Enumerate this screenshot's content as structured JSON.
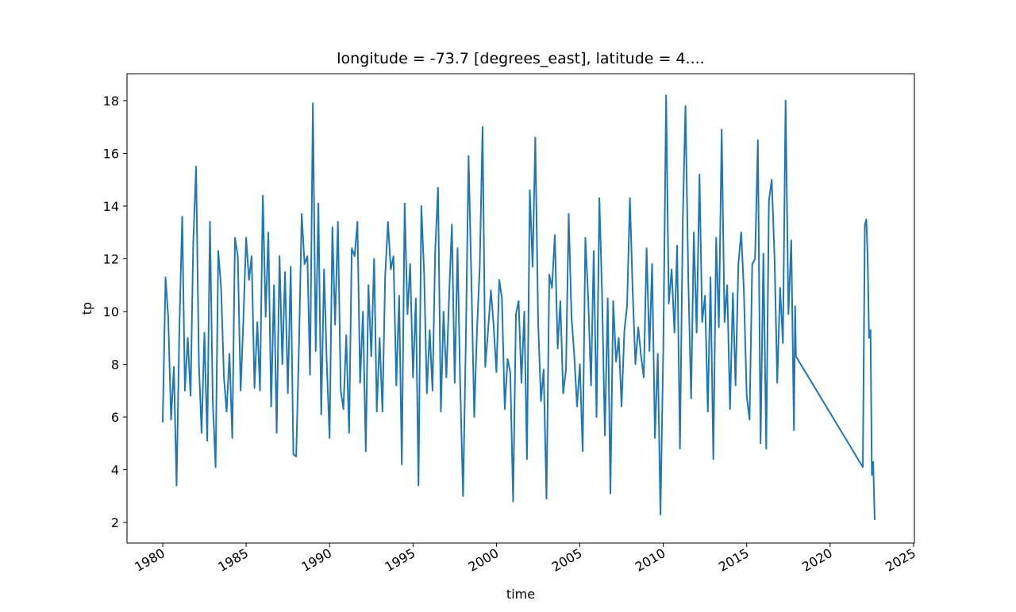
{
  "chart_data": {
    "type": "line",
    "title": "longitude = -73.7 [degrees_east], latitude = 4....",
    "xlabel": "time",
    "ylabel": "tp",
    "xlim": [
      1977.86,
      2025.05
    ],
    "ylim": [
      1.22,
      19.02
    ],
    "xticks": [
      1980,
      1985,
      1990,
      1995,
      2000,
      2005,
      2010,
      2015,
      2020,
      2025
    ],
    "yticks": [
      2,
      4,
      6,
      8,
      10,
      12,
      14,
      16,
      18
    ],
    "series": [
      {
        "color": "#1f77b4",
        "x": [
          1980.0,
          1980.17,
          1980.33,
          1980.5,
          1980.67,
          1980.83,
          1981.0,
          1981.17,
          1981.33,
          1981.5,
          1981.67,
          1981.83,
          1982.0,
          1982.17,
          1982.33,
          1982.5,
          1982.67,
          1982.83,
          1983.0,
          1983.17,
          1983.33,
          1983.5,
          1983.67,
          1983.83,
          1984.0,
          1984.17,
          1984.33,
          1984.5,
          1984.67,
          1984.83,
          1985.0,
          1985.17,
          1985.33,
          1985.5,
          1985.67,
          1985.83,
          1986.0,
          1986.17,
          1986.33,
          1986.5,
          1986.67,
          1986.83,
          1987.0,
          1987.17,
          1987.33,
          1987.5,
          1987.67,
          1987.83,
          1988.0,
          1988.17,
          1988.33,
          1988.5,
          1988.67,
          1988.83,
          1989.0,
          1989.17,
          1989.33,
          1989.5,
          1989.67,
          1989.83,
          1990.0,
          1990.17,
          1990.33,
          1990.5,
          1990.67,
          1990.83,
          1991.0,
          1991.17,
          1991.33,
          1991.5,
          1991.67,
          1991.83,
          1992.0,
          1992.17,
          1992.33,
          1992.5,
          1992.67,
          1992.83,
          1993.0,
          1993.17,
          1993.33,
          1993.5,
          1993.67,
          1993.83,
          1994.0,
          1994.17,
          1994.33,
          1994.5,
          1994.67,
          1994.83,
          1995.0,
          1995.17,
          1995.33,
          1995.5,
          1995.67,
          1995.83,
          1996.0,
          1996.17,
          1996.33,
          1996.5,
          1996.67,
          1996.83,
          1997.0,
          1997.17,
          1997.33,
          1997.5,
          1997.67,
          1997.83,
          1998.0,
          1998.17,
          1998.33,
          1998.5,
          1998.67,
          1998.83,
          1999.0,
          1999.17,
          1999.33,
          1999.5,
          1999.67,
          1999.83,
          2000.0,
          2000.17,
          2000.33,
          2000.5,
          2000.67,
          2000.83,
          2001.0,
          2001.17,
          2001.33,
          2001.5,
          2001.67,
          2001.83,
          2002.0,
          2002.17,
          2002.33,
          2002.5,
          2002.67,
          2002.83,
          2003.0,
          2003.17,
          2003.33,
          2003.5,
          2003.67,
          2003.83,
          2004.0,
          2004.17,
          2004.33,
          2004.5,
          2004.67,
          2004.83,
          2005.0,
          2005.17,
          2005.33,
          2005.5,
          2005.67,
          2005.83,
          2006.0,
          2006.17,
          2006.33,
          2006.5,
          2006.67,
          2006.83,
          2007.0,
          2007.17,
          2007.33,
          2007.5,
          2007.67,
          2007.83,
          2008.0,
          2008.17,
          2008.33,
          2008.5,
          2008.67,
          2008.83,
          2009.0,
          2009.17,
          2009.33,
          2009.5,
          2009.67,
          2009.83,
          2010.0,
          2010.17,
          2010.33,
          2010.5,
          2010.67,
          2010.83,
          2011.0,
          2011.17,
          2011.33,
          2011.5,
          2011.67,
          2011.83,
          2012.0,
          2012.17,
          2012.33,
          2012.5,
          2012.67,
          2012.83,
          2013.0,
          2013.17,
          2013.33,
          2013.5,
          2013.67,
          2013.83,
          2014.0,
          2014.17,
          2014.33,
          2014.5,
          2014.67,
          2014.83,
          2015.0,
          2015.17,
          2015.33,
          2015.5,
          2015.67,
          2015.83,
          2016.0,
          2016.17,
          2016.33,
          2016.5,
          2016.67,
          2016.83,
          2017.0,
          2017.17,
          2017.33,
          2017.5,
          2017.67,
          2017.83,
          2017.9,
          2017.95,
          2021.96,
          2022.08,
          2022.17,
          2022.25,
          2022.33,
          2022.42,
          2022.5,
          2022.58,
          2022.67
        ],
        "values": [
          5.8,
          11.3,
          9.8,
          5.9,
          7.9,
          3.4,
          9.4,
          13.6,
          7.0,
          9.0,
          6.8,
          12.6,
          15.5,
          8.0,
          5.4,
          9.2,
          5.1,
          13.4,
          6.6,
          4.1,
          12.3,
          10.9,
          7.5,
          6.2,
          8.4,
          5.2,
          12.8,
          12.1,
          7.0,
          9.6,
          12.8,
          11.2,
          12.1,
          7.1,
          9.6,
          7.0,
          14.4,
          9.8,
          13.0,
          6.4,
          11.0,
          5.4,
          12.1,
          8.0,
          11.5,
          6.9,
          11.7,
          4.6,
          4.5,
          8.8,
          13.7,
          11.8,
          12.1,
          7.6,
          17.9,
          8.5,
          14.1,
          6.1,
          11.6,
          8.1,
          5.2,
          13.2,
          9.5,
          13.4,
          7.0,
          6.3,
          9.1,
          5.4,
          12.4,
          12.1,
          13.4,
          7.3,
          10.0,
          4.7,
          11.0,
          8.3,
          12.0,
          6.2,
          9.0,
          6.2,
          11.3,
          13.4,
          11.6,
          12.1,
          7.2,
          10.6,
          4.2,
          14.1,
          9.9,
          11.8,
          7.5,
          10.5,
          3.4,
          14.0,
          11.4,
          6.9,
          9.3,
          7.0,
          12.3,
          14.7,
          6.2,
          10.0,
          7.5,
          10.7,
          13.3,
          7.3,
          12.4,
          7.2,
          3.0,
          9.0,
          15.9,
          11.2,
          6.0,
          9.2,
          11.7,
          17.0,
          7.9,
          9.3,
          10.8,
          9.5,
          7.7,
          11.2,
          10.5,
          6.3,
          8.2,
          7.7,
          2.8,
          9.9,
          10.4,
          7.3,
          10.0,
          4.4,
          14.6,
          11.7,
          16.6,
          9.6,
          6.6,
          7.8,
          2.9,
          11.4,
          10.9,
          12.9,
          8.6,
          10.4,
          6.9,
          7.8,
          13.7,
          9.8,
          8.3,
          6.4,
          8.0,
          4.7,
          12.8,
          10.5,
          7.2,
          12.3,
          6.0,
          14.3,
          10.7,
          5.3,
          10.5,
          3.1,
          10.4,
          8.1,
          9.0,
          6.4,
          9.3,
          10.2,
          14.3,
          10.7,
          8.0,
          9.4,
          8.3,
          7.5,
          12.4,
          8.5,
          11.8,
          5.2,
          8.4,
          2.3,
          8.6,
          18.2,
          10.3,
          11.6,
          9.2,
          12.5,
          4.8,
          13.5,
          17.8,
          11.2,
          6.7,
          13.0,
          9.2,
          15.2,
          9.6,
          10.6,
          6.2,
          11.3,
          4.4,
          12.8,
          9.4,
          16.9,
          9.6,
          11.0,
          6.3,
          10.7,
          7.2,
          11.8,
          13.0,
          10.8,
          6.8,
          5.9,
          11.8,
          12.0,
          16.5,
          5.0,
          12.2,
          4.8,
          14.2,
          15.0,
          12.0,
          7.3,
          10.9,
          8.8,
          18.0,
          9.9,
          12.7,
          5.5,
          10.2,
          8.3,
          4.1,
          13.3,
          13.5,
          12.0,
          9.0,
          9.3,
          3.8,
          4.3,
          2.1
        ]
      }
    ]
  }
}
